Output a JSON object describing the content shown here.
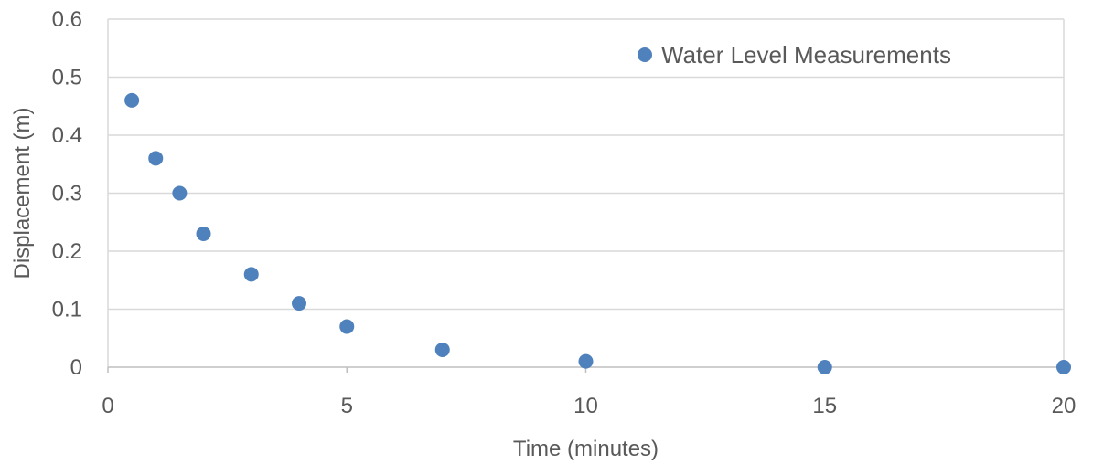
{
  "chart_data": {
    "type": "scatter",
    "title": "",
    "xlabel": "Time (minutes)",
    "ylabel": "Displacement (m)",
    "xlim": [
      0,
      20
    ],
    "ylim": [
      0,
      0.6
    ],
    "x_ticks": [
      0,
      5,
      10,
      15,
      20
    ],
    "y_ticks": [
      0,
      0.1,
      0.2,
      0.3,
      0.4,
      0.5,
      0.6
    ],
    "x_tick_labels": [
      "0",
      "5",
      "10",
      "15",
      "20"
    ],
    "y_tick_labels": [
      "0",
      "0.1",
      "0.2",
      "0.3",
      "0.4",
      "0.5",
      "0.6"
    ],
    "grid": "horizontal",
    "legend_position": "top-right",
    "series": [
      {
        "name": "Water Level Measurements",
        "color": "#4F81BD",
        "x": [
          0.5,
          1,
          1.5,
          2,
          3,
          4,
          5,
          7,
          10,
          15,
          20
        ],
        "y": [
          0.46,
          0.36,
          0.3,
          0.23,
          0.16,
          0.11,
          0.07,
          0.03,
          0.01,
          0.0,
          0.0
        ]
      }
    ],
    "colors": {
      "gridline": "#D9D9D9",
      "axis": "#BFBFBF",
      "text": "#595959"
    }
  }
}
